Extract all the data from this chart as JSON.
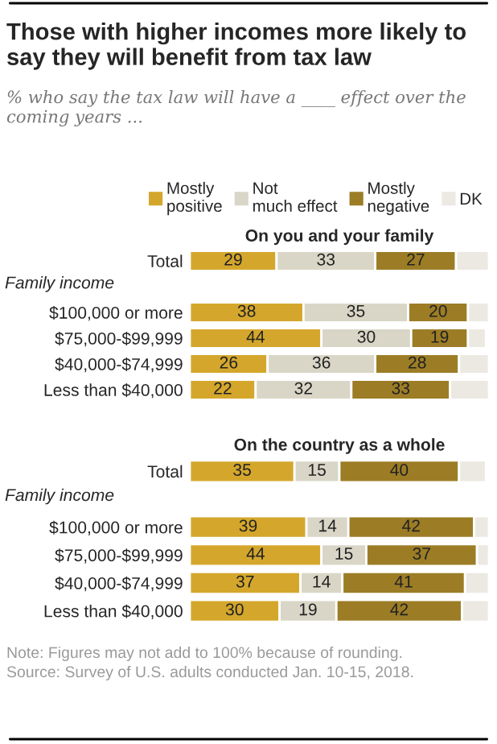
{
  "chart_data": [
    {
      "type": "bar",
      "orientation": "horizontal",
      "stacked": true,
      "title": "Those with higher incomes more likely to say they will benefit from tax law",
      "subtitle": "% who say the tax law will have a ____ effect over the coming years ...",
      "categories": [
        "Total",
        null,
        "$100,000 or more",
        "$75,000-$99,999",
        "$40,000-$74,999",
        "Less than $40,000"
      ],
      "xlim": [
        0,
        100
      ],
      "tick_labels": "y",
      "legend": "top",
      "grid": false,
      "annotations": [
        "On you and your family",
        "Family income"
      ],
      "series": [
        {
          "name": "Mostly positive",
          "color": "#d4a72c",
          "values": [
            29,
            null,
            38,
            44,
            26,
            22
          ],
          "value_labels": [
            "29",
            null,
            "38",
            "44",
            "26",
            "22"
          ]
        },
        {
          "name": "Not much effect",
          "color": "#d9d6c7",
          "values": [
            33,
            null,
            35,
            30,
            36,
            32
          ],
          "value_labels": [
            "33",
            null,
            "35",
            "30",
            "36",
            "32"
          ]
        },
        {
          "name": "Mostly negative",
          "color": "#9c7d26",
          "values": [
            27,
            null,
            20,
            19,
            28,
            33
          ],
          "value_labels": [
            "27",
            null,
            "20",
            "19",
            "28",
            "33"
          ]
        },
        {
          "name": "DK",
          "color": "#ece9e2",
          "values": [
            11,
            null,
            7,
            6,
            10,
            13
          ]
        }
      ]
    },
    {
      "type": "bar",
      "orientation": "horizontal",
      "stacked": true,
      "categories": [
        "Total",
        null,
        "$100,000 or more",
        "$75,000-$99,999",
        "$40,000-$74,999",
        "Less than $40,000"
      ],
      "xlim": [
        0,
        100
      ],
      "tick_labels": "y",
      "grid": false,
      "annotations": [
        "On the country as a whole",
        "Family income",
        "Note: Figures may not add to 100% because of rounding.",
        "Source: Survey of U.S. adults conducted Jan. 10-15, 2018."
      ],
      "series": [
        {
          "color": "#d4a72c",
          "values": [
            35,
            null,
            39,
            44,
            37,
            30
          ],
          "value_labels": [
            "35",
            null,
            "39",
            "44",
            "37",
            "30"
          ]
        },
        {
          "color": "#d9d6c7",
          "values": [
            15,
            null,
            14,
            15,
            14,
            19
          ],
          "value_labels": [
            "15",
            null,
            "14",
            "15",
            "14",
            "19"
          ]
        },
        {
          "color": "#9c7d26",
          "values": [
            40,
            null,
            42,
            37,
            41,
            42
          ],
          "value_labels": [
            "40",
            null,
            "42",
            "37",
            "41",
            "42"
          ]
        },
        {
          "color": "#ece9e2",
          "values": [
            9,
            null,
            5,
            4,
            8,
            9
          ]
        }
      ]
    }
  ]
}
